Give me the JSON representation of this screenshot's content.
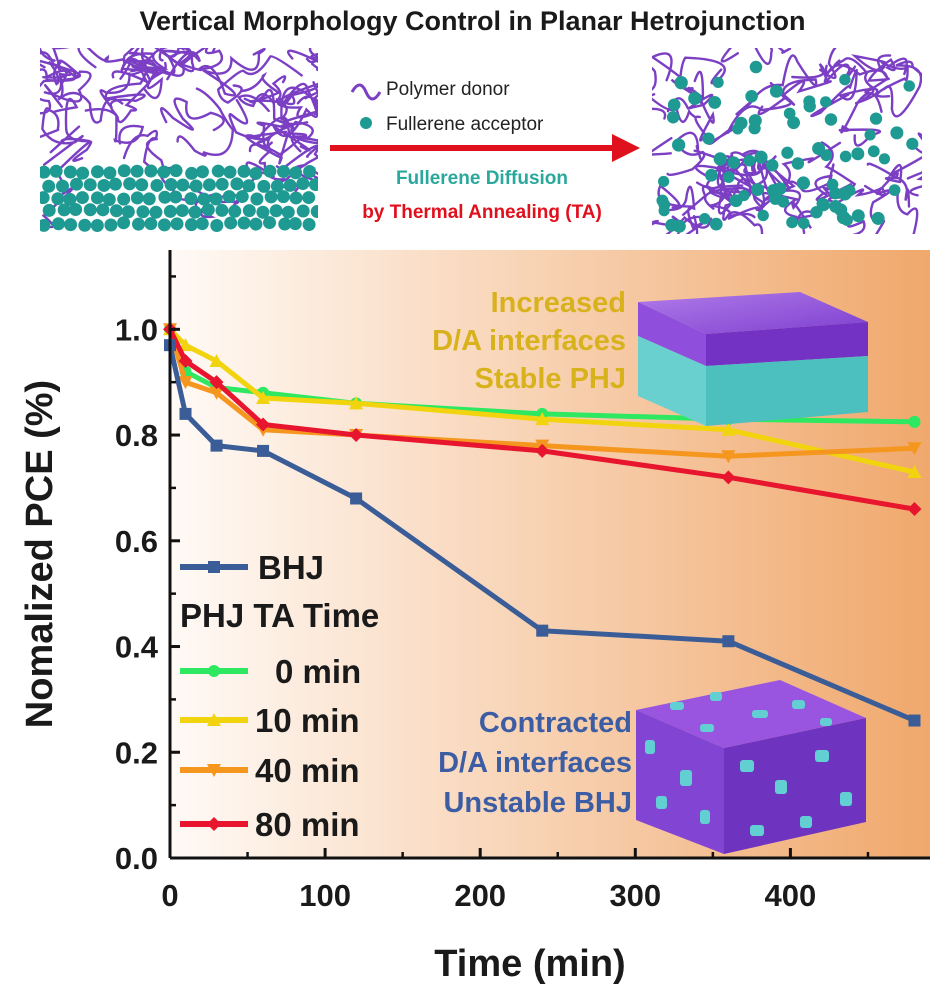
{
  "title": "Vertical Morphology Control in Planar Hetrojunction",
  "schematic": {
    "legend_polymer": "Polymer donor",
    "legend_fullerene": "Fullerene acceptor",
    "arrow_line1": "Fullerene Diffusion",
    "arrow_line2": "by Thermal Annealing (TA)",
    "colors": {
      "polymer": "#7b3fc4",
      "fullerene": "#1f9a92",
      "arrow": "#e0101c",
      "diffusion_text": "#2aa89c"
    }
  },
  "chart_data": {
    "type": "line",
    "xlabel": "Time (min)",
    "ylabel": "Nomalized PCE (%)",
    "xlim": [
      0,
      490
    ],
    "ylim": [
      0,
      1.15
    ],
    "xticks": [
      "0",
      "100",
      "200",
      "300",
      "400"
    ],
    "yticks": [
      "0.0",
      "0.2",
      "0.4",
      "0.6",
      "0.8",
      "1.0"
    ],
    "legend_title": "PHJ TA Time",
    "legend_placement": "bottom-left",
    "series": [
      {
        "name": "BHJ",
        "color": "#3a5c97",
        "marker": "square",
        "x": [
          0,
          10,
          30,
          60,
          120,
          240,
          360,
          480
        ],
        "y": [
          0.97,
          0.84,
          0.78,
          0.77,
          0.68,
          0.43,
          0.41,
          0.26
        ]
      },
      {
        "name": "0 min",
        "color": "#2ee862",
        "marker": "circle",
        "x": [
          0,
          10,
          30,
          60,
          120,
          240,
          360,
          480
        ],
        "y": [
          1.0,
          0.92,
          0.89,
          0.88,
          0.86,
          0.84,
          0.83,
          0.825
        ]
      },
      {
        "name": "10 min",
        "color": "#f2d40e",
        "marker": "triangle-up",
        "x": [
          0,
          10,
          30,
          60,
          120,
          240,
          360,
          480
        ],
        "y": [
          1.0,
          0.97,
          0.94,
          0.87,
          0.86,
          0.83,
          0.81,
          0.73
        ]
      },
      {
        "name": "40 min",
        "color": "#f5961e",
        "marker": "triangle-down",
        "x": [
          0,
          10,
          30,
          60,
          120,
          240,
          360,
          480
        ],
        "y": [
          1.0,
          0.9,
          0.88,
          0.81,
          0.8,
          0.78,
          0.76,
          0.775
        ]
      },
      {
        "name": "80 min",
        "color": "#e8152e",
        "marker": "diamond",
        "x": [
          0,
          10,
          30,
          60,
          120,
          240,
          360,
          480
        ],
        "y": [
          1.0,
          0.94,
          0.9,
          0.82,
          0.8,
          0.77,
          0.72,
          0.66
        ]
      }
    ],
    "annotations": {
      "stable_lines": [
        "Increased",
        "D/A interfaces",
        "Stable PHJ"
      ],
      "stable_color": "#d8b21c",
      "unstable_lines": [
        "Contracted",
        "D/A interfaces",
        "Unstable BHJ"
      ],
      "unstable_color": "#3c5da3"
    },
    "background_gradient": [
      "#fffaf6",
      "#f0a86c"
    ]
  }
}
